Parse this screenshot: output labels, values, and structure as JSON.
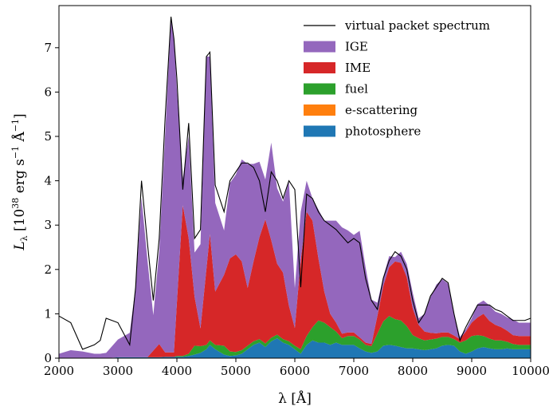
{
  "chart_data": {
    "type": "area",
    "xlabel": "λ [Å]",
    "ylabel": "L_λ [10^38 erg s^-1 Å^-1]",
    "ylabel_parts": {
      "symbol": "L",
      "sub": "λ",
      "open": " [10",
      "exp": "38",
      "unit": " erg s",
      "exp2": "−1",
      "unit2": " Å",
      "exp3": "−1",
      "close": "]"
    },
    "xlim": [
      2000,
      10000
    ],
    "ylim": [
      0,
      7.95
    ],
    "xticks": [
      2000,
      3000,
      4000,
      5000,
      6000,
      7000,
      8000,
      9000,
      10000
    ],
    "yticks": [
      0,
      1,
      2,
      3,
      4,
      5,
      6,
      7
    ],
    "grid": false,
    "legend_position": "top-right",
    "x": [
      2000,
      2200,
      2400,
      2600,
      2700,
      2800,
      3000,
      3200,
      3300,
      3400,
      3500,
      3600,
      3700,
      3800,
      3900,
      3950,
      4000,
      4100,
      4200,
      4300,
      4400,
      4500,
      4560,
      4650,
      4800,
      4900,
      5000,
      5100,
      5200,
      5300,
      5400,
      5500,
      5600,
      5700,
      5800,
      5900,
      6000,
      6100,
      6200,
      6300,
      6400,
      6500,
      6600,
      6700,
      6800,
      6900,
      7000,
      7100,
      7200,
      7300,
      7400,
      7500,
      7600,
      7700,
      7800,
      7900,
      8000,
      8100,
      8200,
      8300,
      8400,
      8500,
      8600,
      8700,
      8800,
      8900,
      9000,
      9100,
      9200,
      9300,
      9400,
      9500,
      9600,
      9700,
      9800,
      9900,
      10000
    ],
    "series": [
      {
        "name": "photosphere",
        "color": "#1f77b4",
        "values": [
          0,
          0,
          0,
          0,
          0,
          0,
          0.02,
          0.02,
          0.02,
          0.02,
          0.02,
          0.02,
          0.02,
          0.03,
          0.03,
          0.03,
          0.03,
          0.03,
          0.05,
          0.08,
          0.12,
          0.2,
          0.3,
          0.2,
          0.08,
          0.05,
          0.06,
          0.1,
          0.2,
          0.3,
          0.35,
          0.25,
          0.38,
          0.45,
          0.35,
          0.3,
          0.2,
          0.1,
          0.3,
          0.4,
          0.35,
          0.35,
          0.3,
          0.35,
          0.3,
          0.3,
          0.3,
          0.22,
          0.15,
          0.12,
          0.15,
          0.28,
          0.3,
          0.28,
          0.25,
          0.22,
          0.22,
          0.2,
          0.18,
          0.2,
          0.22,
          0.28,
          0.3,
          0.28,
          0.15,
          0.1,
          0.15,
          0.22,
          0.25,
          0.22,
          0.2,
          0.2,
          0.22,
          0.2,
          0.2,
          0.2,
          0.2
        ]
      },
      {
        "name": "e-scattering",
        "color": "#ff7f0e",
        "values": [
          0,
          0,
          0,
          0,
          0,
          0,
          0,
          0,
          0,
          0,
          0,
          0,
          0,
          0,
          0,
          0,
          0,
          0,
          0,
          0,
          0,
          0,
          0,
          0,
          0,
          0,
          0,
          0,
          0,
          0,
          0,
          0,
          0,
          0,
          0,
          0,
          0,
          0,
          0,
          0,
          0,
          0,
          0,
          0,
          0,
          0,
          0,
          0,
          0,
          0,
          0,
          0,
          0,
          0,
          0,
          0,
          0,
          0,
          0,
          0,
          0,
          0,
          0,
          0,
          0,
          0,
          0,
          0,
          0,
          0,
          0,
          0,
          0,
          0,
          0,
          0,
          0
        ]
      },
      {
        "name": "fuel",
        "color": "#2ca02c",
        "values": [
          0,
          0,
          0,
          0,
          0,
          0,
          0,
          0,
          0,
          0,
          0,
          0,
          0,
          0,
          0,
          0,
          0.02,
          0.02,
          0.05,
          0.2,
          0.15,
          0.1,
          0.1,
          0.1,
          0.2,
          0.1,
          0.08,
          0.08,
          0.08,
          0.08,
          0.08,
          0.08,
          0.08,
          0.08,
          0.08,
          0.08,
          0.08,
          0.1,
          0.2,
          0.3,
          0.5,
          0.45,
          0.4,
          0.25,
          0.15,
          0.2,
          0.2,
          0.2,
          0.15,
          0.15,
          0.4,
          0.55,
          0.65,
          0.6,
          0.6,
          0.5,
          0.3,
          0.25,
          0.22,
          0.22,
          0.22,
          0.2,
          0.18,
          0.15,
          0.2,
          0.3,
          0.35,
          0.3,
          0.25,
          0.22,
          0.2,
          0.2,
          0.15,
          0.12,
          0.1,
          0.1,
          0.1
        ]
      },
      {
        "name": "IME",
        "color": "#d62728",
        "values": [
          0,
          0,
          0,
          0,
          0,
          0,
          0,
          0,
          0,
          0,
          0,
          0.15,
          0.3,
          0.1,
          0.1,
          0.1,
          1.2,
          3.4,
          2.6,
          1.1,
          0.4,
          1.7,
          2.4,
          1.2,
          1.6,
          2.1,
          2.2,
          2.0,
          1.3,
          1.8,
          2.3,
          2.8,
          2.2,
          1.6,
          1.5,
          0.8,
          0.4,
          2.0,
          2.8,
          2.4,
          1.4,
          0.7,
          0.3,
          0.2,
          0.1,
          0.08,
          0.08,
          0.05,
          0.05,
          0.05,
          0.4,
          0.8,
          1.1,
          1.3,
          1.3,
          1.1,
          0.6,
          0.3,
          0.2,
          0.15,
          0.12,
          0.1,
          0.1,
          0.08,
          0.08,
          0.2,
          0.3,
          0.4,
          0.5,
          0.4,
          0.35,
          0.3,
          0.25,
          0.2,
          0.2,
          0.2,
          0.2
        ]
      },
      {
        "name": "IGE",
        "color": "#9467bd",
        "values": [
          0.1,
          0.18,
          0.15,
          0.1,
          0.1,
          0.12,
          0.4,
          0.55,
          1.6,
          3.6,
          2.2,
          0.8,
          2.1,
          4.9,
          7.5,
          7.1,
          4.8,
          0.6,
          2.3,
          1.0,
          1.9,
          4.8,
          4.0,
          2.0,
          1.0,
          1.7,
          1.8,
          2.3,
          2.8,
          2.2,
          1.7,
          0.9,
          2.2,
          1.7,
          1.6,
          2.8,
          0.9,
          1.1,
          0.7,
          0.5,
          1.1,
          1.6,
          2.1,
          2.3,
          2.4,
          2.3,
          2.2,
          2.4,
          1.7,
          1.0,
          0.3,
          0.2,
          0.25,
          0.1,
          0.25,
          0.3,
          0.35,
          0.15,
          0.4,
          0.8,
          1.1,
          1.2,
          1.1,
          0.5,
          0.05,
          0.05,
          0.1,
          0.3,
          0.3,
          0.35,
          0.3,
          0.3,
          0.3,
          0.35,
          0.3,
          0.3,
          0.3
        ]
      }
    ],
    "virtual_packet_spectrum": {
      "name": "virtual packet spectrum",
      "color": "#000000",
      "values": [
        0.95,
        0.8,
        0.2,
        0.3,
        0.4,
        0.9,
        0.8,
        0.3,
        1.6,
        4.0,
        2.6,
        1.3,
        2.7,
        5.4,
        7.7,
        7.2,
        6.3,
        3.8,
        5.3,
        2.7,
        2.9,
        6.8,
        6.9,
        3.9,
        3.3,
        4.0,
        4.2,
        4.4,
        4.4,
        4.3,
        4.0,
        3.3,
        4.2,
        4.0,
        3.6,
        4.0,
        3.8,
        1.6,
        3.7,
        3.6,
        3.3,
        3.1,
        3.0,
        2.9,
        2.75,
        2.6,
        2.7,
        2.6,
        1.8,
        1.3,
        1.1,
        1.8,
        2.2,
        2.4,
        2.3,
        2.0,
        1.3,
        0.8,
        1.0,
        1.4,
        1.6,
        1.8,
        1.7,
        1.0,
        0.4,
        0.7,
        0.95,
        1.2,
        1.2,
        1.2,
        1.1,
        1.05,
        0.95,
        0.85,
        0.85,
        0.85,
        0.9
      ]
    },
    "legend": [
      {
        "label": "virtual packet spectrum",
        "kind": "line",
        "color": "#000000"
      },
      {
        "label": "IGE",
        "kind": "patch",
        "color": "#9467bd"
      },
      {
        "label": "IME",
        "kind": "patch",
        "color": "#d62728"
      },
      {
        "label": "fuel",
        "kind": "patch",
        "color": "#2ca02c"
      },
      {
        "label": "e-scattering",
        "kind": "patch",
        "color": "#ff7f0e"
      },
      {
        "label": "photosphere",
        "kind": "patch",
        "color": "#1f77b4"
      }
    ]
  }
}
